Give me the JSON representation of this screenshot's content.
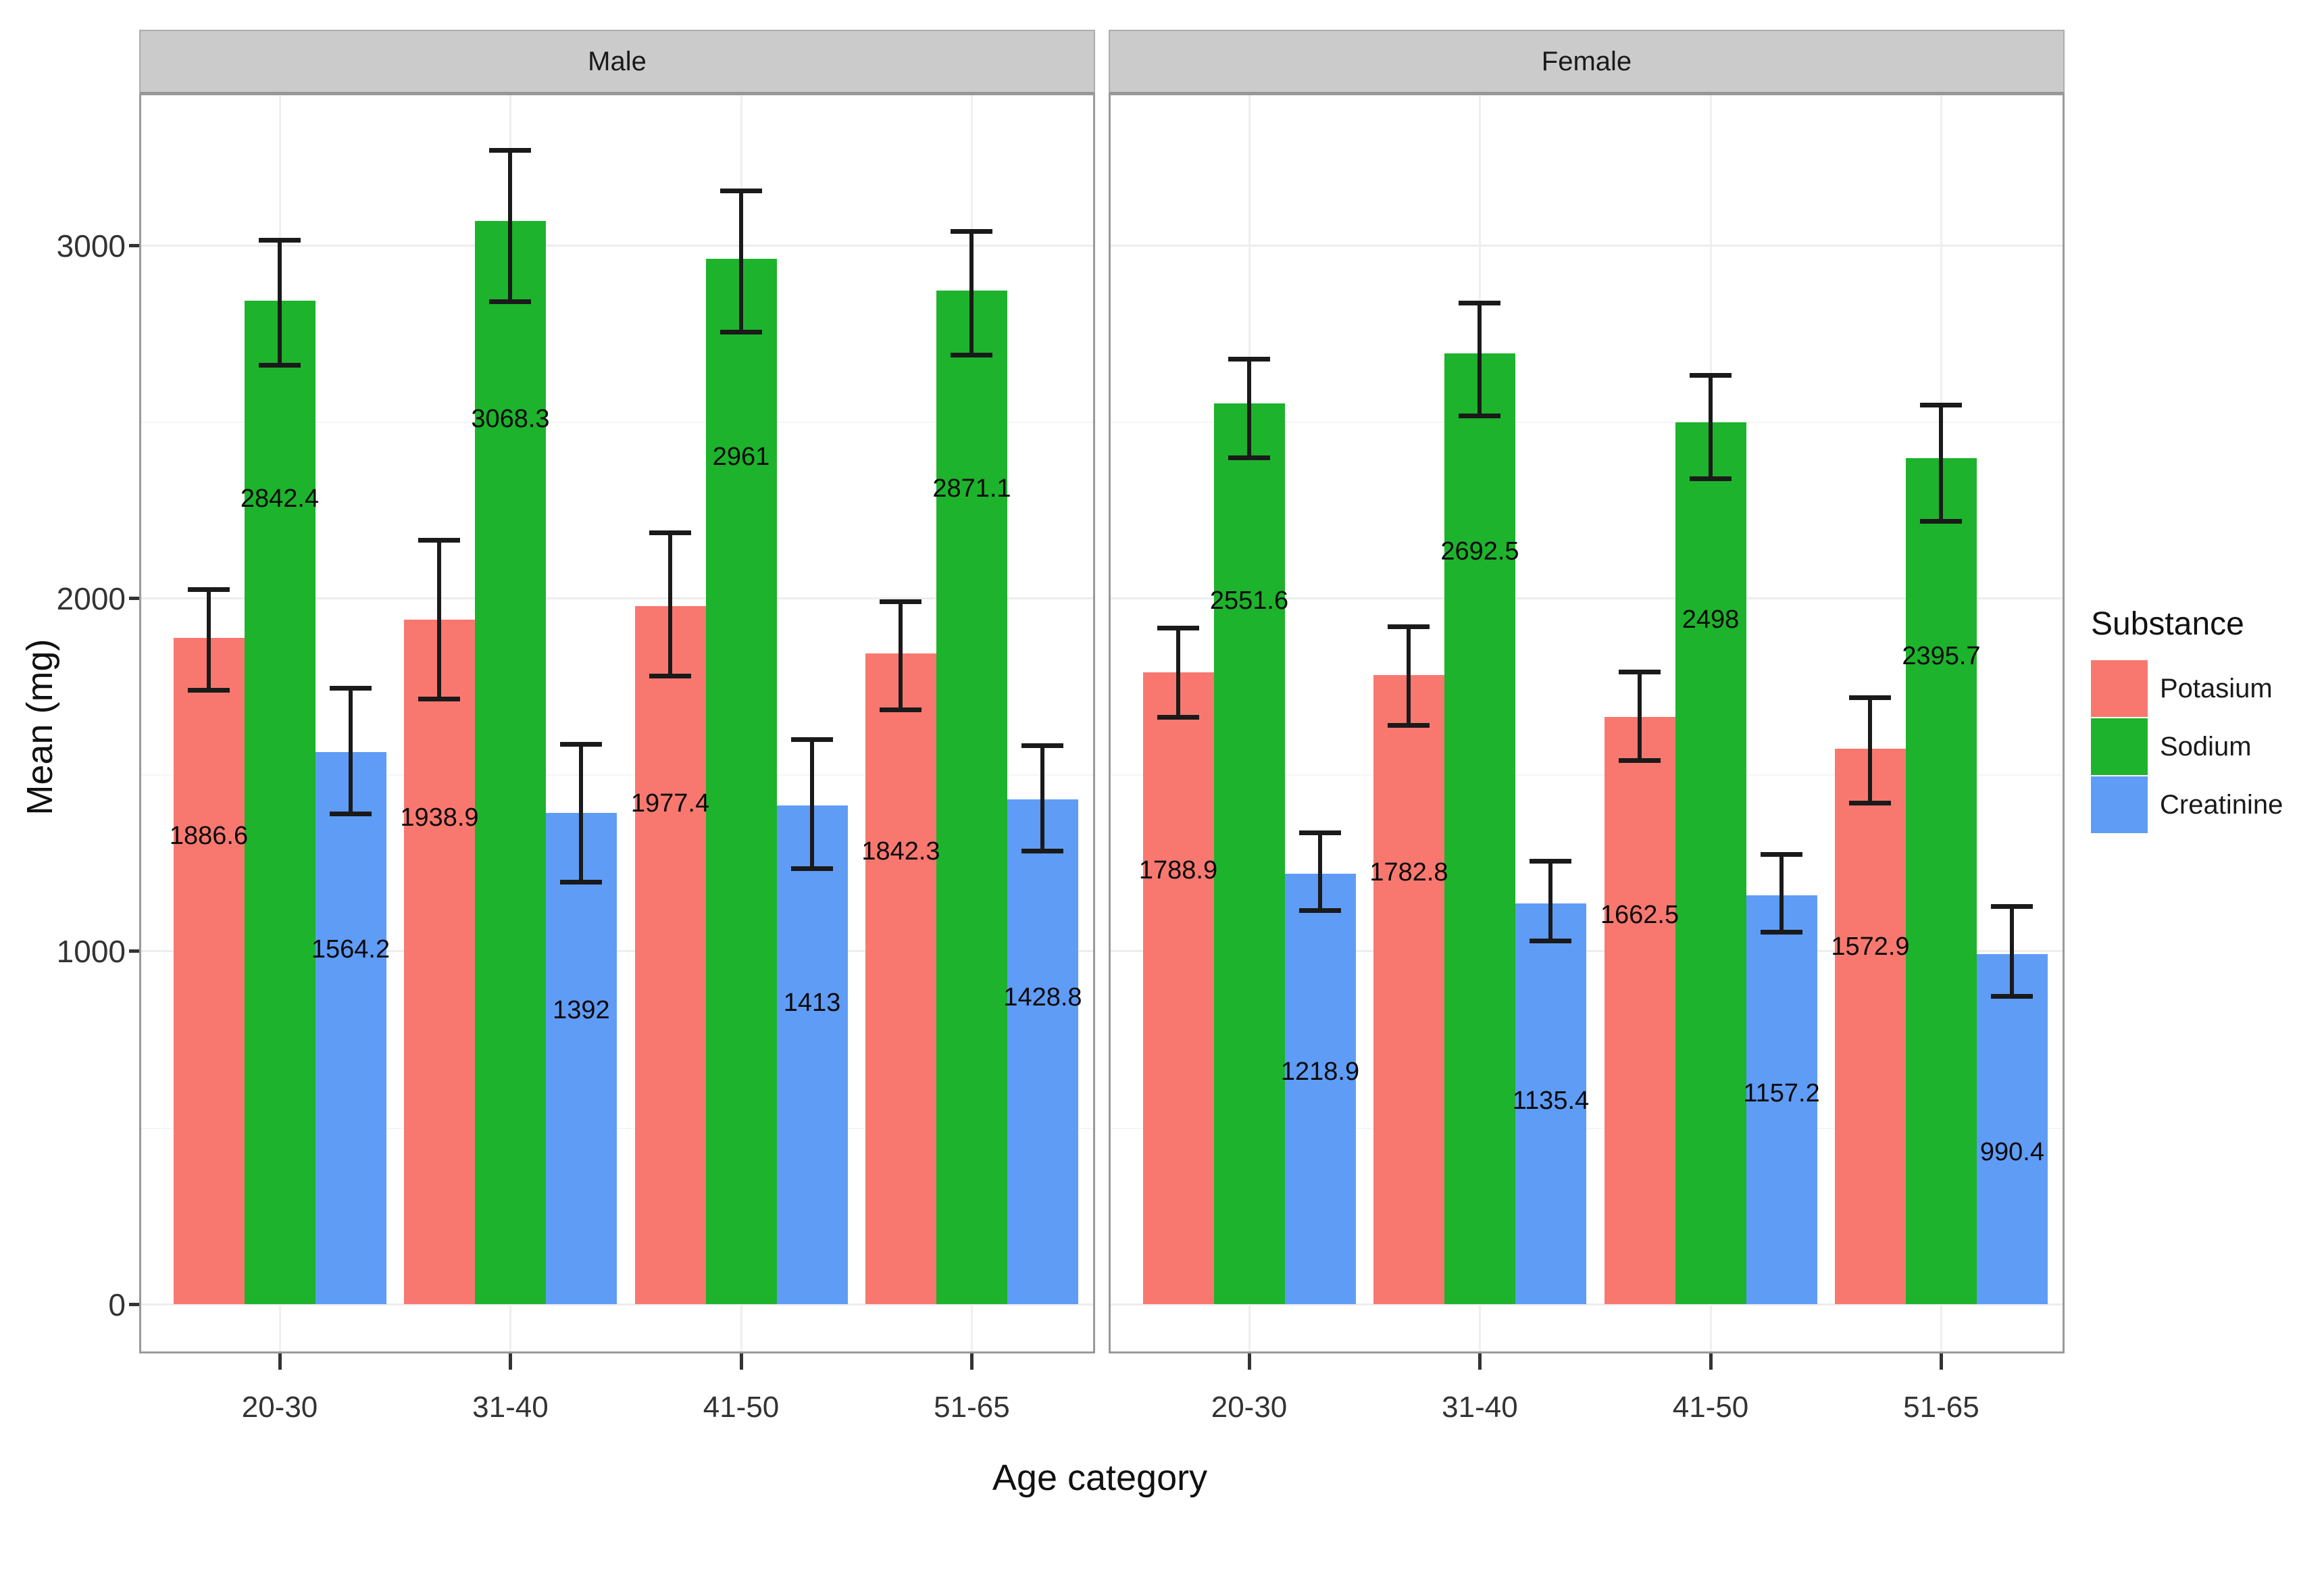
{
  "legend": {
    "title": "Substance",
    "items": [
      {
        "label": "Potasium",
        "color": "#F8786F"
      },
      {
        "label": "Sodium",
        "color": "#1DB32C"
      },
      {
        "label": "Creatinine",
        "color": "#5F9CF6"
      }
    ]
  },
  "chart_data": {
    "type": "bar",
    "title": "",
    "xlabel": "Age category",
    "ylabel": "Mean (mg)",
    "categories": [
      "20-30",
      "31-40",
      "41-50",
      "51-65"
    ],
    "yticks": [
      0,
      1000,
      2000,
      3000
    ],
    "yticks_minor": [
      500,
      1500,
      2500
    ],
    "ylim": [
      -140,
      3430
    ],
    "grid": true,
    "legend_position": "right",
    "error_bars": true,
    "value_labels": true,
    "facets": [
      {
        "label": "Male",
        "series": [
          {
            "name": "Potasium",
            "color": "#F8786F",
            "values": [
              1886.6,
              1938.9,
              1977.4,
              1842.3
            ],
            "err_low": [
              1740,
              1715,
              1780,
              1685
            ],
            "err_high": [
              2025,
              2165,
              2185,
              1990
            ]
          },
          {
            "name": "Sodium",
            "color": "#1DB32C",
            "values": [
              2842.4,
              3068.3,
              2961,
              2871.1
            ],
            "err_low": [
              2660,
              2840,
              2755,
              2690
            ],
            "err_high": [
              3015,
              3270,
              3155,
              3040
            ]
          },
          {
            "name": "Creatinine",
            "color": "#5F9CF6",
            "values": [
              1564.2,
              1392,
              1413,
              1428.8
            ],
            "err_low": [
              1390,
              1197,
              1235,
              1285
            ],
            "err_high": [
              1745,
              1586,
              1600,
              1582
            ]
          }
        ]
      },
      {
        "label": "Female",
        "series": [
          {
            "name": "Potasium",
            "color": "#F8786F",
            "values": [
              1788.9,
              1782.8,
              1662.5,
              1572.9
            ],
            "err_low": [
              1664,
              1641,
              1540,
              1421
            ],
            "err_high": [
              1915,
              1920,
              1792,
              1719
            ]
          },
          {
            "name": "Sodium",
            "color": "#1DB32C",
            "values": [
              2551.6,
              2692.5,
              2498,
              2395.7
            ],
            "err_low": [
              2399,
              2517,
              2339,
              2219
            ],
            "err_high": [
              2678,
              2837,
              2632,
              2548
            ]
          },
          {
            "name": "Creatinine",
            "color": "#5F9CF6",
            "values": [
              1218.9,
              1135.4,
              1157.2,
              990.4
            ],
            "err_low": [
              1115,
              1029,
              1054,
              872
            ],
            "err_high": [
              1335,
              1255,
              1274,
              1127
            ]
          }
        ]
      }
    ]
  }
}
